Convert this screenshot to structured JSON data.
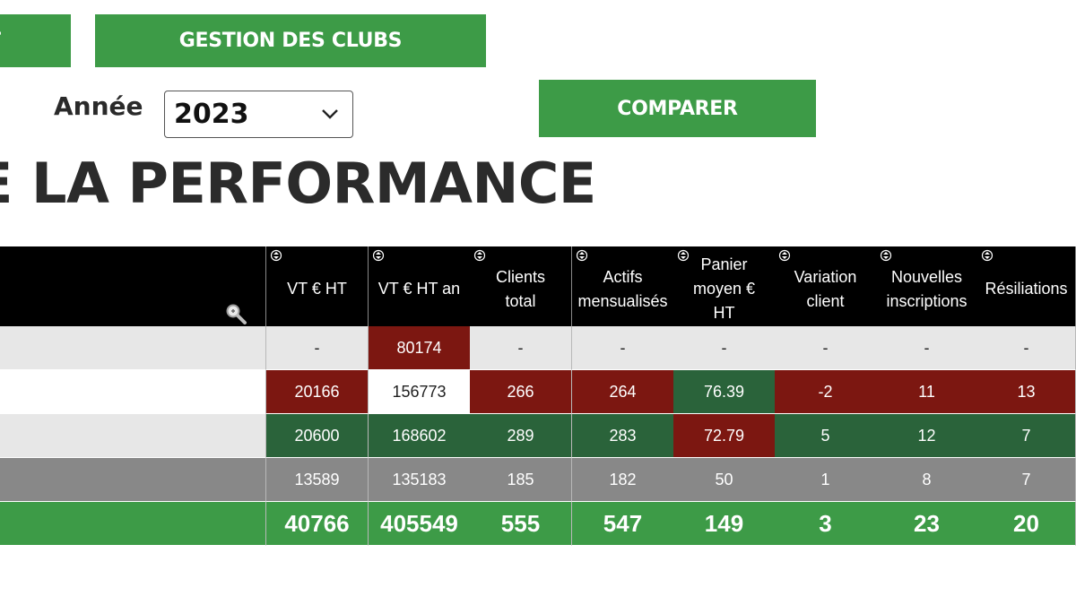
{
  "nav": {
    "left_button_label": "T",
    "clubs_button_label": "GESTION DES CLUBS",
    "compare_button_label": "COMPARER"
  },
  "filter": {
    "year_label": "Année",
    "year_value": "2023"
  },
  "page_title": "E LA PERFORMANCE",
  "table": {
    "columns": [
      "VT € HT",
      "VT € HT an",
      "Clients\ntotal",
      "Actifs\nmensualisés",
      "Panier\nmoyen €\nHT",
      "Variation\nclient",
      "Nouvelles\ninscriptions",
      "Résiliations"
    ],
    "rows": [
      {
        "label_bg": "#e7e7e7",
        "cells": [
          {
            "v": "-",
            "c": "light"
          },
          {
            "v": "80174",
            "c": "red"
          },
          {
            "v": "-",
            "c": "light"
          },
          {
            "v": "-",
            "c": "light"
          },
          {
            "v": "-",
            "c": "light"
          },
          {
            "v": "-",
            "c": "light"
          },
          {
            "v": "-",
            "c": "light"
          },
          {
            "v": "-",
            "c": "light"
          }
        ]
      },
      {
        "label_bg": "#ffffff",
        "cells": [
          {
            "v": "20166",
            "c": "red"
          },
          {
            "v": "156773",
            "c": "white"
          },
          {
            "v": "266",
            "c": "red"
          },
          {
            "v": "264",
            "c": "red"
          },
          {
            "v": "76.39",
            "c": "green"
          },
          {
            "v": "-2",
            "c": "red"
          },
          {
            "v": "11",
            "c": "red"
          },
          {
            "v": "13",
            "c": "red"
          }
        ]
      },
      {
        "label_bg": "#e7e7e7",
        "cells": [
          {
            "v": "20600",
            "c": "green"
          },
          {
            "v": "168602",
            "c": "green"
          },
          {
            "v": "289",
            "c": "green"
          },
          {
            "v": "283",
            "c": "green"
          },
          {
            "v": "72.79",
            "c": "red"
          },
          {
            "v": "5",
            "c": "green"
          },
          {
            "v": "12",
            "c": "green"
          },
          {
            "v": "7",
            "c": "green"
          }
        ]
      },
      {
        "label_bg": "#888888",
        "cells": [
          {
            "v": "13589",
            "c": "grey"
          },
          {
            "v": "135183",
            "c": "grey"
          },
          {
            "v": "185",
            "c": "grey"
          },
          {
            "v": "182",
            "c": "grey"
          },
          {
            "v": "50",
            "c": "grey"
          },
          {
            "v": "1",
            "c": "grey"
          },
          {
            "v": "8",
            "c": "grey"
          },
          {
            "v": "7",
            "c": "grey"
          }
        ]
      }
    ],
    "totals": {
      "label_bg": "#3d9b47",
      "cells": [
        "40766",
        "405549",
        "555",
        "547",
        "149",
        "3",
        "23",
        "20"
      ]
    }
  },
  "icons": {
    "sort": "sort-toggle-icon",
    "zoom": "magnifier-icon",
    "chevron": "chevron-down-icon"
  },
  "colors": {
    "accent_green": "#3d9b47",
    "good_green": "#2a633a",
    "bad_red": "#7c1711",
    "neutral_grey": "#888888",
    "header_black": "#000000"
  }
}
